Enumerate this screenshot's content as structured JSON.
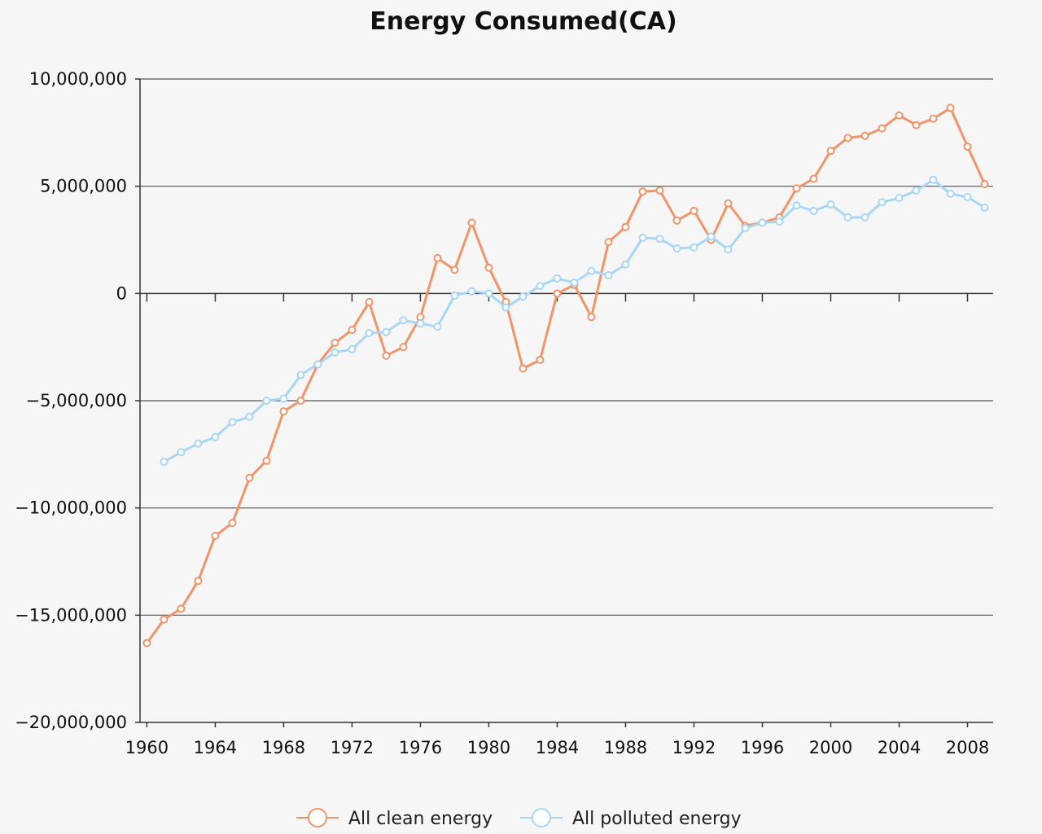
{
  "chart_data": {
    "type": "line",
    "title": "Energy Consumed(CA)",
    "xlabel": "",
    "ylabel": "",
    "xlim": [
      1960,
      2009
    ],
    "ylim": [
      -20000000,
      10000000
    ],
    "x_ticks": [
      1960,
      1964,
      1968,
      1972,
      1976,
      1980,
      1984,
      1988,
      1992,
      1996,
      2000,
      2004,
      2008
    ],
    "y_ticks": [
      10000000,
      5000000,
      0,
      -5000000,
      -10000000,
      -15000000,
      -20000000
    ],
    "y_tick_labels": [
      "10,000,000",
      "5,000,000",
      "0",
      "−5,000,000",
      "−10,000,000",
      "−15,000,000",
      "−20,000,000"
    ],
    "grid": "horizontal",
    "legend": "bottom",
    "series": [
      {
        "name": "All clean energy",
        "color": "#f0956a",
        "x": [
          1960,
          1961,
          1962,
          1963,
          1964,
          1965,
          1966,
          1967,
          1968,
          1969,
          1970,
          1971,
          1972,
          1973,
          1974,
          1975,
          1976,
          1977,
          1978,
          1979,
          1980,
          1981,
          1982,
          1983,
          1984,
          1985,
          1986,
          1987,
          1988,
          1989,
          1990,
          1991,
          1992,
          1993,
          1994,
          1995,
          1996,
          1997,
          1998,
          1999,
          2000,
          2001,
          2002,
          2003,
          2004,
          2005,
          2006,
          2007,
          2008,
          2009
        ],
        "values": [
          -16300000,
          -15200000,
          -14700000,
          -13400000,
          -11300000,
          -10700000,
          -8600000,
          -7800000,
          -5500000,
          -5000000,
          -3300000,
          -2300000,
          -1700000,
          -400000,
          -2900000,
          -2500000,
          -1100000,
          1650000,
          1100000,
          3300000,
          1200000,
          -400000,
          -3500000,
          -3100000,
          0,
          400000,
          -1100000,
          2400000,
          3100000,
          4750000,
          4800000,
          3400000,
          3850000,
          2500000,
          4200000,
          3150000,
          3300000,
          3550000,
          4900000,
          5350000,
          6650000,
          7250000,
          7350000,
          7700000,
          8300000,
          7850000,
          8150000,
          8650000,
          6850000,
          5100000
        ]
      },
      {
        "name": "All polluted energy",
        "color": "#a8d6f5",
        "x": [
          1961,
          1962,
          1963,
          1964,
          1965,
          1966,
          1967,
          1968,
          1969,
          1970,
          1971,
          1972,
          1973,
          1974,
          1975,
          1976,
          1977,
          1978,
          1979,
          1980,
          1981,
          1982,
          1983,
          1984,
          1985,
          1986,
          1987,
          1988,
          1989,
          1990,
          1991,
          1992,
          1993,
          1994,
          1995,
          1996,
          1997,
          1998,
          1999,
          2000,
          2001,
          2002,
          2003,
          2004,
          2005,
          2006,
          2007,
          2008,
          2009
        ],
        "values": [
          -7850000,
          -7400000,
          -7000000,
          -6700000,
          -6000000,
          -5750000,
          -5000000,
          -4900000,
          -3800000,
          -3300000,
          -2750000,
          -2600000,
          -1850000,
          -1800000,
          -1250000,
          -1400000,
          -1550000,
          -100000,
          100000,
          0,
          -650000,
          -150000,
          350000,
          700000,
          500000,
          1050000,
          850000,
          1350000,
          2600000,
          2550000,
          2100000,
          2150000,
          2650000,
          2050000,
          3050000,
          3300000,
          3350000,
          4100000,
          3850000,
          4150000,
          3550000,
          3550000,
          4250000,
          4450000,
          4800000,
          5300000,
          4650000,
          4500000,
          4000000
        ]
      }
    ]
  }
}
